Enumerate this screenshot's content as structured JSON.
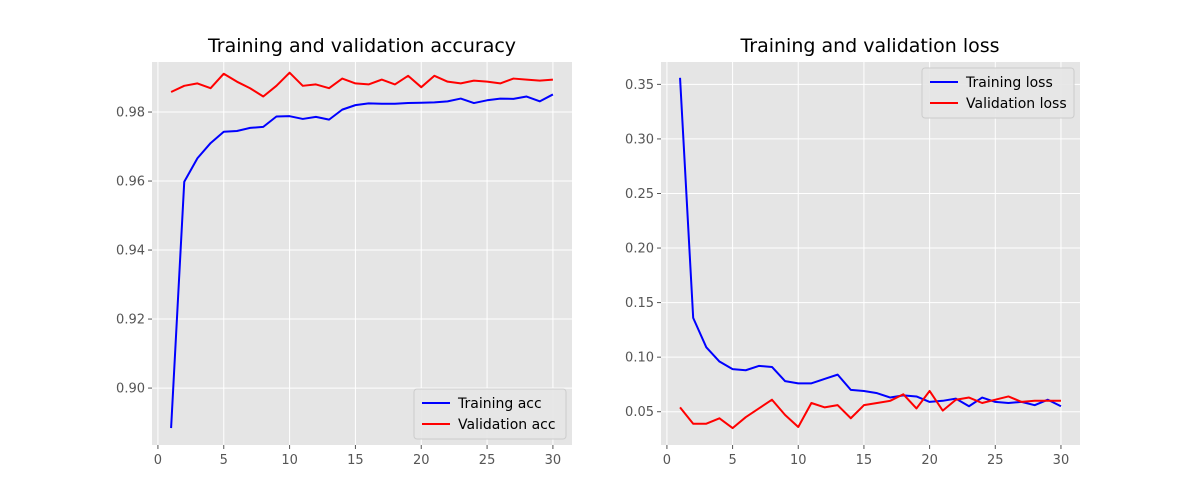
{
  "chart_data": [
    {
      "type": "line",
      "title": "Training and validation accuracy",
      "xlabel": "",
      "ylabel": "",
      "xlim": [
        -0.45,
        31.45
      ],
      "ylim": [
        0.8835,
        0.9945
      ],
      "xticks": [
        0,
        5,
        10,
        15,
        20,
        25,
        30
      ],
      "yticks": [
        0.9,
        0.92,
        0.94,
        0.96,
        0.98
      ],
      "ytick_labels": [
        "0.90",
        "0.92",
        "0.94",
        "0.96",
        "0.98"
      ],
      "grid": true,
      "legend_position": "lower-right",
      "x": [
        1,
        2,
        3,
        4,
        5,
        6,
        7,
        8,
        9,
        10,
        11,
        12,
        13,
        14,
        15,
        16,
        17,
        18,
        19,
        20,
        21,
        22,
        23,
        24,
        25,
        26,
        27,
        28,
        29,
        30
      ],
      "series": [
        {
          "name": "Training acc",
          "color": "#0000ff",
          "values": [
            0.8884,
            0.9598,
            0.9666,
            0.971,
            0.9743,
            0.9745,
            0.9754,
            0.9757,
            0.9787,
            0.9788,
            0.978,
            0.9786,
            0.9778,
            0.9807,
            0.982,
            0.9825,
            0.9824,
            0.9824,
            0.9826,
            0.9827,
            0.9828,
            0.9831,
            0.9839,
            0.9826,
            0.9834,
            0.9839,
            0.9838,
            0.9845,
            0.9831,
            0.9851
          ]
        },
        {
          "name": "Validation acc",
          "color": "#ff0000",
          "values": [
            0.9858,
            0.9876,
            0.9883,
            0.9869,
            0.9911,
            0.9888,
            0.9869,
            0.9845,
            0.9876,
            0.9914,
            0.9876,
            0.988,
            0.9869,
            0.9897,
            0.9883,
            0.988,
            0.9894,
            0.988,
            0.9905,
            0.9872,
            0.9905,
            0.9888,
            0.9883,
            0.9891,
            0.9888,
            0.9883,
            0.9897,
            0.9894,
            0.9891,
            0.9894
          ]
        }
      ]
    },
    {
      "type": "line",
      "title": "Training and validation loss",
      "xlabel": "",
      "ylabel": "",
      "xlim": [
        -0.45,
        31.45
      ],
      "ylim": [
        0.0195,
        0.3705
      ],
      "xticks": [
        0,
        5,
        10,
        15,
        20,
        25,
        30
      ],
      "yticks": [
        0.05,
        0.1,
        0.15,
        0.2,
        0.25,
        0.3,
        0.35
      ],
      "ytick_labels": [
        "0.05",
        "0.10",
        "0.15",
        "0.20",
        "0.25",
        "0.30",
        "0.35"
      ],
      "grid": true,
      "legend_position": "upper-right",
      "x": [
        1,
        2,
        3,
        4,
        5,
        6,
        7,
        8,
        9,
        10,
        11,
        12,
        13,
        14,
        15,
        16,
        17,
        18,
        19,
        20,
        21,
        22,
        23,
        24,
        25,
        26,
        27,
        28,
        29,
        30
      ],
      "series": [
        {
          "name": "Training loss",
          "color": "#0000ff",
          "values": [
            0.356,
            0.136,
            0.109,
            0.096,
            0.089,
            0.088,
            0.092,
            0.091,
            0.078,
            0.076,
            0.076,
            0.08,
            0.084,
            0.07,
            0.069,
            0.067,
            0.063,
            0.065,
            0.064,
            0.059,
            0.06,
            0.062,
            0.055,
            0.063,
            0.059,
            0.058,
            0.059,
            0.056,
            0.061,
            0.055
          ]
        },
        {
          "name": "Validation loss",
          "color": "#ff0000",
          "values": [
            0.054,
            0.039,
            0.039,
            0.044,
            0.035,
            0.045,
            0.053,
            0.061,
            0.047,
            0.036,
            0.058,
            0.054,
            0.056,
            0.044,
            0.056,
            0.058,
            0.06,
            0.066,
            0.053,
            0.069,
            0.051,
            0.061,
            0.063,
            0.058,
            0.061,
            0.064,
            0.059,
            0.06,
            0.06,
            0.06
          ]
        }
      ]
    }
  ]
}
